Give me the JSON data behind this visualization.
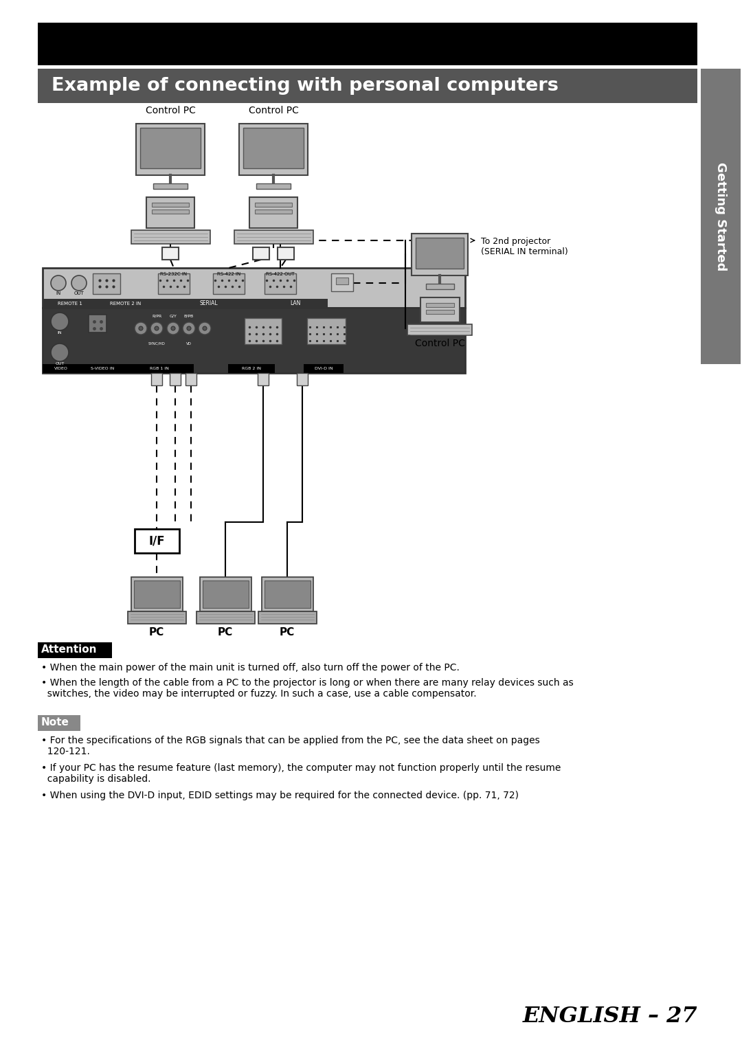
{
  "page_bg": "#ffffff",
  "top_bar_color": "#000000",
  "section_bar_color": "#555555",
  "section_title": "Example of connecting with personal computers",
  "section_title_color": "#ffffff",
  "section_title_fontsize": 20,
  "sidebar_color": "#777777",
  "sidebar_text": "Getting Started",
  "attention_title": "Attention",
  "attention_title_color": "#ffffff",
  "note_title": "Note",
  "note_title_color": "#ffffff",
  "attention_bullets": [
    "When the main power of the main unit is turned off, also turn off the power of the PC.",
    "When the length of the cable from a PC to the projector is long or when there are many relay devices such as\n  switches, the video may be interrupted or fuzzy. In such a case, use a cable compensator."
  ],
  "note_bullets": [
    "For the specifications of the RGB signals that can be applied from the PC, see the data sheet on pages\n  120-121.",
    "If your PC has the resume feature (last memory), the computer may not function properly until the resume\n  capability is disabled.",
    "When using the DVI-D input, EDID settings may be required for the connected device. (pp. 71, 72)"
  ],
  "footer_text": "ENGLISH – 27",
  "ctrl_pc1_label": "Control PC",
  "ctrl_pc2_label": "Control PC",
  "ctrl_pc3_label": "Control PC",
  "to_2nd_label": "To 2nd projector\n(SERIAL IN terminal)",
  "if_label": "I/F",
  "pc_labels": [
    "PC",
    "PC",
    "PC"
  ]
}
